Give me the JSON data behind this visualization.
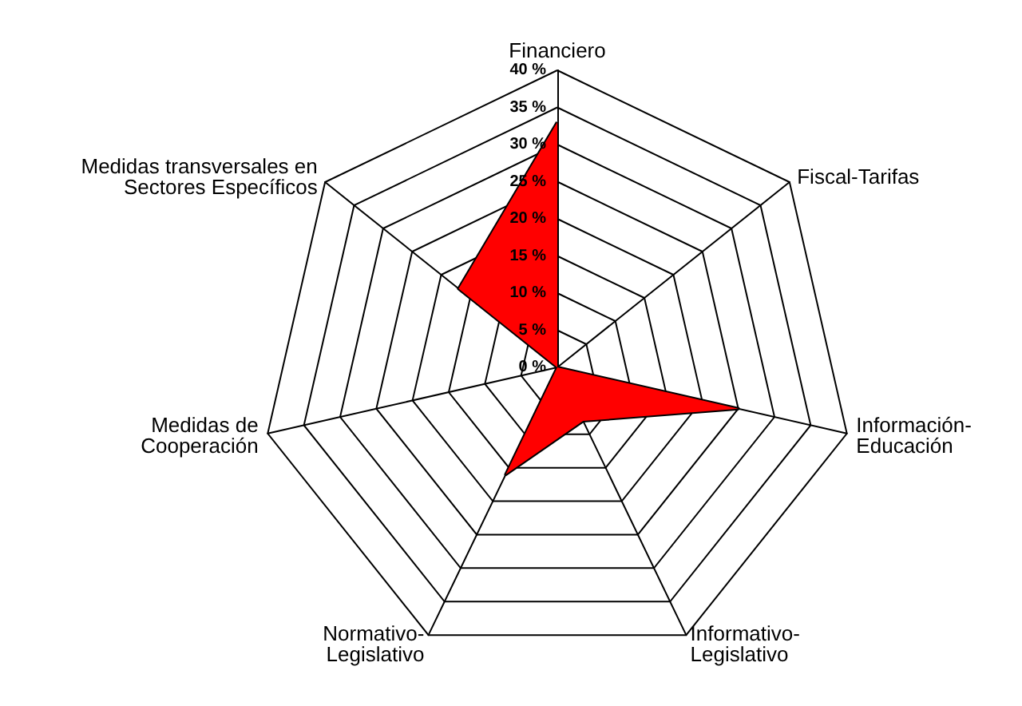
{
  "chart_data": {
    "type": "radar",
    "categories": [
      "Financiero",
      "Fiscal-Tarifas",
      "Información-\nEducación",
      "Informativo-\nLegislativo",
      "Normativo-\nLegislativo",
      "Medidas de\nCooperación",
      "Medidas transversales en\nSectores Específicos"
    ],
    "series": [
      {
        "color": "#ff0000",
        "values": [
          33,
          0,
          25,
          8,
          16,
          0,
          17
        ]
      }
    ],
    "ylim": [
      0,
      40
    ],
    "yticks": [
      {
        "value": 0,
        "label": "0 %"
      },
      {
        "value": 5,
        "label": "5 %"
      },
      {
        "value": 10,
        "label": "10 %"
      },
      {
        "value": 15,
        "label": "15 %"
      },
      {
        "value": 20,
        "label": "20 %"
      },
      {
        "value": 25,
        "label": "25 %"
      },
      {
        "value": 30,
        "label": "30 %"
      },
      {
        "value": 35,
        "label": "35 %"
      },
      {
        "value": 40,
        "label": "40 %"
      }
    ],
    "marker": "none"
  }
}
